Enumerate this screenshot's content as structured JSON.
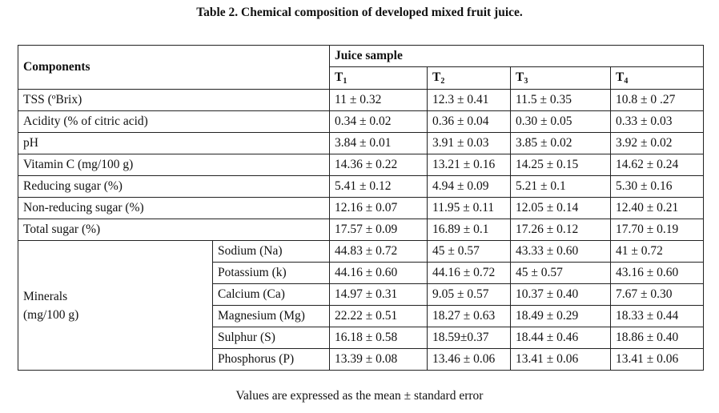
{
  "caption": "Table 2. Chemical composition of developed mixed fruit juice.",
  "header": {
    "components": "Components",
    "juice_sample": "Juice sample",
    "treatments": [
      {
        "letter": "T",
        "sub": "1"
      },
      {
        "letter": "T",
        "sub": "2"
      },
      {
        "letter": "T",
        "sub": "3"
      },
      {
        "letter": "T",
        "sub": "4"
      }
    ]
  },
  "rows": [
    {
      "label": "TSS (ºBrix)",
      "values": [
        "11 ± 0.32",
        "12.3 ± 0.41",
        "11.5 ± 0.35",
        "10.8 ± 0 .27"
      ]
    },
    {
      "label": "Acidity (% of citric acid)",
      "values": [
        "0.34 ± 0.02",
        "0.36 ± 0.04",
        "0.30 ± 0.05",
        "0.33 ± 0.03"
      ]
    },
    {
      "label": "pH",
      "values": [
        "3.84 ± 0.01",
        "3.91 ± 0.03",
        "3.85 ± 0.02",
        "3.92 ± 0.02"
      ]
    },
    {
      "label": "Vitamin C (mg/100 g)",
      "values": [
        "14.36 ± 0.22",
        "13.21 ± 0.16",
        "14.25 ± 0.15",
        "14.62 ± 0.24"
      ]
    },
    {
      "label": "Reducing sugar (%)",
      "values": [
        "5.41 ± 0.12",
        "4.94 ± 0.09",
        "5.21 ± 0.1",
        "5.30 ± 0.16"
      ]
    },
    {
      "label": "Non-reducing sugar (%)",
      "values": [
        "12.16 ± 0.07",
        "11.95 ± 0.11",
        "12.05 ± 0.14",
        "12.40 ± 0.21"
      ]
    },
    {
      "label": "Total sugar (%)",
      "values": [
        "17.57 ± 0.09",
        "16.89 ± 0.1",
        "17.26 ± 0.12",
        "17.70 ± 0.19"
      ]
    }
  ],
  "minerals": {
    "label_line1": "Minerals",
    "label_line2": "(mg/100 g)",
    "rows": [
      {
        "label": "Sodium (Na)",
        "values": [
          "44.83 ± 0.72",
          "45 ± 0.57",
          "43.33 ± 0.60",
          "41 ± 0.72"
        ]
      },
      {
        "label": "Potassium (k)",
        "values": [
          "44.16 ± 0.60",
          "44.16 ± 0.72",
          "45 ± 0.57",
          "43.16 ± 0.60"
        ]
      },
      {
        "label": "Calcium (Ca)",
        "values": [
          "14.97 ± 0.31",
          "9.05 ± 0.57",
          "10.37 ± 0.40",
          "7.67 ± 0.30"
        ]
      },
      {
        "label": "Magnesium (Mg)",
        "values": [
          "22.22 ± 0.51",
          "18.27 ± 0.63",
          "18.49 ± 0.29",
          "18.33 ± 0.44"
        ]
      },
      {
        "label": "Sulphur (S)",
        "values": [
          "16.18 ± 0.58",
          "18.59±0.37",
          "18.44 ± 0.46",
          "18.86 ± 0.40"
        ]
      },
      {
        "label": "Phosphorus (P)",
        "values": [
          "13.39 ± 0.08",
          "13.46 ± 0.06",
          "13.41 ± 0.06",
          "13.41 ± 0.06"
        ]
      }
    ]
  },
  "footnote": "Values are expressed as the mean ± standard error"
}
